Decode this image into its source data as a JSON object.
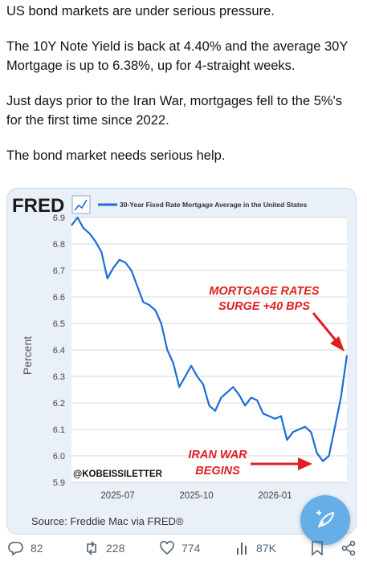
{
  "post": {
    "paragraphs": [
      "US bond markets are under serious pressure.",
      "The 10Y Note Yield is back at 4.40% and the average 30Y Mortgage is up to 6.38%, up for 4-straight weeks.",
      "Just days prior to the Iran War, mortgages fell to the 5%'s for the first time since 2022.",
      "The bond market needs serious help."
    ]
  },
  "chart_data": {
    "type": "line",
    "brand": "FRED",
    "legend": "30-Year Fixed Rate Mortgage Average in the United States",
    "ylabel": "Percent",
    "ylim": [
      5.9,
      6.9
    ],
    "yticks": [
      "5.9",
      "6.0",
      "6.1",
      "6.2",
      "6.3",
      "6.4",
      "6.5",
      "6.6",
      "6.7",
      "6.8",
      "6.9"
    ],
    "xticks": [
      {
        "label": "2025-07",
        "x": "2025-07-01"
      },
      {
        "label": "2025-10",
        "x": "2025-10-01"
      },
      {
        "label": "2026-01",
        "x": "2026-01-01"
      }
    ],
    "xlim": [
      "2025-05-08",
      "2026-03-26"
    ],
    "series": [
      {
        "color": "#1b6ed6",
        "points": [
          [
            "2025-05-08",
            6.87
          ],
          [
            "2025-05-15",
            6.9
          ],
          [
            "2025-05-22",
            6.86
          ],
          [
            "2025-05-29",
            6.84
          ],
          [
            "2025-06-05",
            6.81
          ],
          [
            "2025-06-12",
            6.77
          ],
          [
            "2025-06-19",
            6.67
          ],
          [
            "2025-06-26",
            6.71
          ],
          [
            "2025-07-03",
            6.74
          ],
          [
            "2025-07-10",
            6.73
          ],
          [
            "2025-07-17",
            6.7
          ],
          [
            "2025-07-24",
            6.64
          ],
          [
            "2025-07-31",
            6.58
          ],
          [
            "2025-08-07",
            6.57
          ],
          [
            "2025-08-14",
            6.55
          ],
          [
            "2025-08-21",
            6.5
          ],
          [
            "2025-08-28",
            6.4
          ],
          [
            "2025-09-04",
            6.35
          ],
          [
            "2025-09-11",
            6.26
          ],
          [
            "2025-09-18",
            6.3
          ],
          [
            "2025-09-25",
            6.34
          ],
          [
            "2025-10-02",
            6.3
          ],
          [
            "2025-10-09",
            6.27
          ],
          [
            "2025-10-16",
            6.19
          ],
          [
            "2025-10-23",
            6.17
          ],
          [
            "2025-10-30",
            6.22
          ],
          [
            "2025-11-06",
            6.24
          ],
          [
            "2025-11-13",
            6.26
          ],
          [
            "2025-11-20",
            6.23
          ],
          [
            "2025-11-27",
            6.19
          ],
          [
            "2025-12-04",
            6.22
          ],
          [
            "2025-12-11",
            6.21
          ],
          [
            "2025-12-18",
            6.16
          ],
          [
            "2025-12-25",
            6.15
          ],
          [
            "2026-01-01",
            6.14
          ],
          [
            "2026-01-08",
            6.15
          ],
          [
            "2026-01-15",
            6.06
          ],
          [
            "2026-01-22",
            6.09
          ],
          [
            "2026-01-29",
            6.1
          ],
          [
            "2026-02-05",
            6.11
          ],
          [
            "2026-02-12",
            6.09
          ],
          [
            "2026-02-19",
            6.01
          ],
          [
            "2026-02-26",
            5.98
          ],
          [
            "2026-03-05",
            6.0
          ],
          [
            "2026-03-12",
            6.11
          ],
          [
            "2026-03-19",
            6.22
          ],
          [
            "2026-03-26",
            6.38
          ]
        ]
      }
    ],
    "annotations": [
      {
        "lines": [
          "MORTGAGE RATES",
          "SURGE +40 BPS"
        ],
        "color": "#e02020"
      },
      {
        "lines": [
          "IRAN WAR",
          "BEGINS"
        ],
        "color": "#e02020"
      }
    ],
    "watermark": "@KOBEISSILETTER",
    "source": "Source: Freddie Mac via FRED®",
    "grid": true
  },
  "actions": {
    "replies": "82",
    "reposts": "228",
    "likes": "774",
    "views": "87K"
  },
  "colors": {
    "line": "#1b6ed6",
    "annotation": "#e02020",
    "card_bg": "#eaf0f7",
    "fab": "#5aa9e6",
    "icon": "#536471"
  },
  "icons": {
    "reply": "reply-icon",
    "repost": "repost-icon",
    "like": "heart-icon",
    "views": "views-icon",
    "bookmark": "bookmark-icon",
    "share": "share-icon",
    "fab": "compose-icon"
  }
}
